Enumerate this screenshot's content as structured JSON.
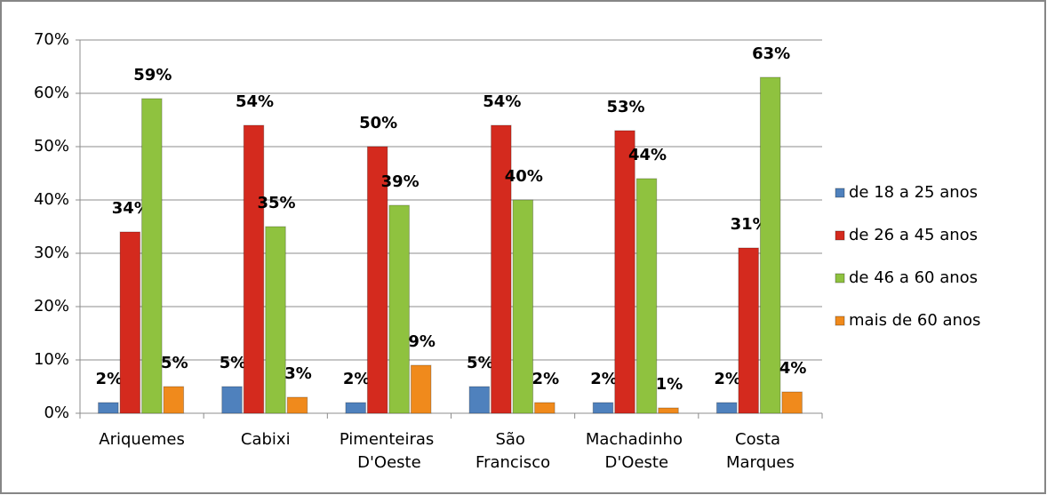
{
  "chart_data": {
    "type": "bar",
    "categories": [
      "Ariquemes",
      "Cabixi",
      "Pimenteiras D'Oeste",
      "São Francisco",
      "Machadinho D'Oeste",
      "Costa Marques"
    ],
    "series": [
      {
        "name": "de 18 a 25 anos",
        "color": "#4f81bd",
        "values": [
          2,
          5,
          2,
          5,
          2,
          2
        ],
        "value_labels": [
          "2%",
          "5%",
          "2%",
          "5%",
          "2%",
          "2%"
        ]
      },
      {
        "name": "de 26 a 45 anos",
        "color": "#d42a1e",
        "values": [
          34,
          54,
          50,
          54,
          53,
          31
        ],
        "value_labels": [
          "34%",
          "54%",
          "50%",
          "54%",
          "53%",
          "31%"
        ]
      },
      {
        "name": "de 46 a 60 anos",
        "color": "#8fc23f",
        "values": [
          59,
          35,
          39,
          40,
          44,
          63
        ],
        "value_labels": [
          "59%",
          "35%",
          "39%",
          "40%",
          "44%",
          "63%"
        ]
      },
      {
        "name": "mais de 60 anos",
        "color": "#f08a1c",
        "values": [
          5,
          3,
          9,
          2,
          1,
          4
        ],
        "value_labels": [
          "5%",
          "3%",
          "9%",
          "2%",
          "1%",
          "4%"
        ]
      }
    ],
    "ylim": [
      0,
      70
    ],
    "yticks": [
      {
        "value": 0,
        "label": "0%"
      },
      {
        "value": 10,
        "label": "10%"
      },
      {
        "value": 20,
        "label": "20%"
      },
      {
        "value": 30,
        "label": "30%"
      },
      {
        "value": 40,
        "label": "40%"
      },
      {
        "value": 50,
        "label": "50%"
      },
      {
        "value": 60,
        "label": "60%"
      },
      {
        "value": 70,
        "label": "70%"
      }
    ],
    "grid": true,
    "legend": "right"
  }
}
